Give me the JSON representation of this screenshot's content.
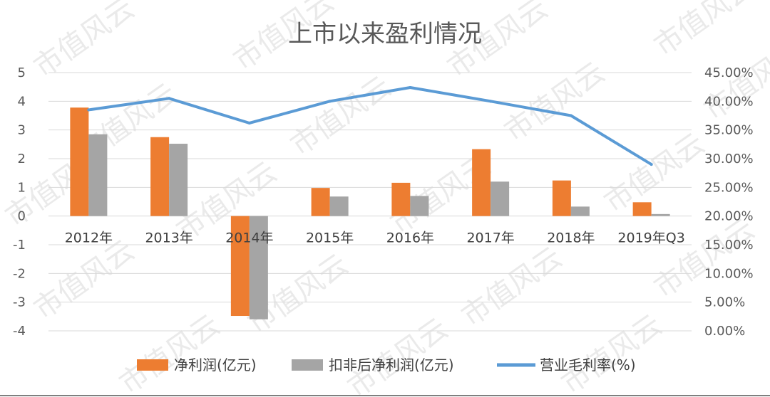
{
  "chart_data": {
    "type": "bar",
    "title": "上市以来盈利情况",
    "categories": [
      "2012年",
      "2013年",
      "2014年",
      "2015年",
      "2016年",
      "2017年",
      "2018年",
      "2019年Q3"
    ],
    "series": [
      {
        "name": "净利润(亿元)",
        "type": "bar",
        "axis": "left",
        "color": "#ed7d31",
        "values": [
          3.78,
          2.75,
          -3.48,
          0.98,
          1.16,
          2.33,
          1.24,
          0.48
        ]
      },
      {
        "name": "扣非后净利润(亿元)",
        "type": "bar",
        "axis": "left",
        "color": "#a5a5a5",
        "values": [
          2.85,
          2.52,
          -3.6,
          0.68,
          0.7,
          1.2,
          0.33,
          0.07
        ]
      },
      {
        "name": "营业毛利率(%)",
        "type": "line",
        "axis": "right",
        "color": "#5b9bd5",
        "values": [
          38.5,
          40.5,
          36.2,
          40.0,
          42.4,
          40.0,
          37.5,
          29.0
        ]
      }
    ],
    "y_left": {
      "min": -4,
      "max": 5,
      "step": 1,
      "ticks": [
        "5",
        "4",
        "3",
        "2",
        "1",
        "0",
        "-1",
        "-2",
        "-3",
        "-4"
      ]
    },
    "y_right": {
      "min": 0,
      "max": 45,
      "step": 5,
      "ticks": [
        "45.00%",
        "40.00%",
        "35.00%",
        "30.00%",
        "25.00%",
        "20.00%",
        "15.00%",
        "10.00%",
        "5.00%",
        "0.00%"
      ]
    },
    "grid": true,
    "legend": "bottom"
  },
  "watermark": "市值风云"
}
